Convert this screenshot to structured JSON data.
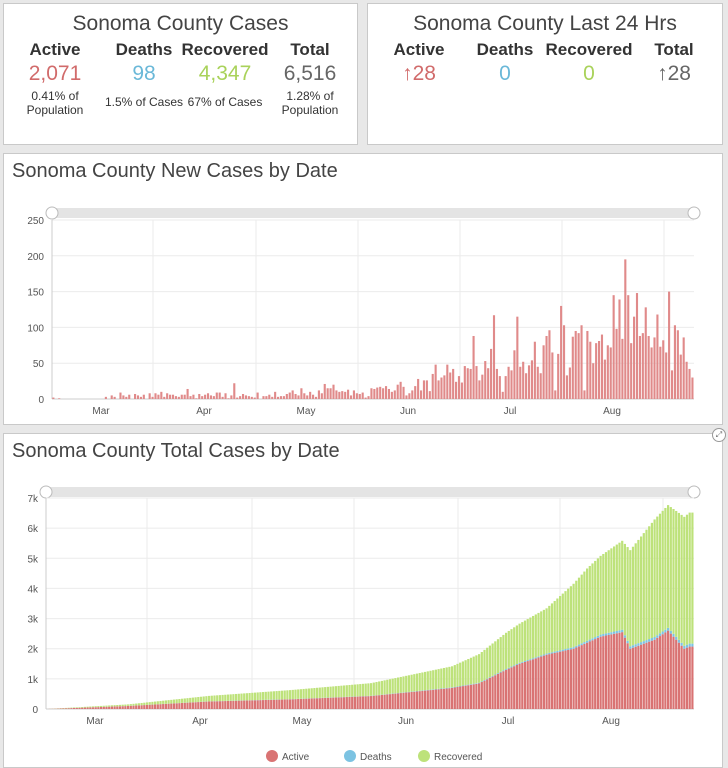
{
  "summary": {
    "title": "Sonoma County Cases",
    "stats": [
      {
        "label": "Active",
        "value": "2,071",
        "sub": "0.41% of Population",
        "color": "#d16b6b"
      },
      {
        "label": "Deaths",
        "value": "98",
        "sub": "1.5% of Cases",
        "color": "#6ab8d8"
      },
      {
        "label": "Recovered",
        "value": "4,347",
        "sub": "67% of Cases",
        "color": "#a9d25a"
      },
      {
        "label": "Total",
        "value": "6,516",
        "sub": "1.28% of Population",
        "color": "#666666"
      }
    ]
  },
  "last24": {
    "title": "Sonoma County Last 24 Hrs",
    "stats": [
      {
        "label": "Active",
        "value": "↑28",
        "color": "#d16b6b"
      },
      {
        "label": "Deaths",
        "value": "0",
        "color": "#6ab8d8"
      },
      {
        "label": "Recovered",
        "value": "0",
        "color": "#a9d25a"
      },
      {
        "label": "Total",
        "value": "↑28",
        "color": "#666666"
      }
    ]
  },
  "chart_data": [
    {
      "type": "bar",
      "title": "Sonoma County New Cases by Date",
      "ylim": [
        0,
        250
      ],
      "y_ticks": [
        "0",
        "50",
        "100",
        "150",
        "200",
        "250"
      ],
      "x_ticks": [
        "Mar",
        "Apr",
        "May",
        "Jun",
        "Jul",
        "Aug"
      ],
      "bar_color": "#e08a8a",
      "grid": true,
      "series": [
        {
          "values": [
            2,
            0,
            1,
            0,
            0,
            0,
            0,
            0,
            0,
            0,
            0,
            0,
            0,
            0,
            0,
            0,
            0,
            0,
            3,
            0,
            5,
            3,
            0,
            9,
            5,
            3,
            6,
            0,
            7,
            5,
            3,
            6,
            0,
            8,
            3,
            8,
            6,
            10,
            3,
            8,
            6,
            6,
            4,
            3,
            6,
            6,
            14,
            4,
            6,
            1,
            7,
            4,
            6,
            8,
            5,
            4,
            9,
            9,
            3,
            8,
            1,
            5,
            22,
            2,
            4,
            7,
            5,
            4,
            3,
            2,
            9,
            0,
            4,
            4,
            6,
            3,
            10,
            3,
            4,
            4,
            7,
            9,
            12,
            7,
            5,
            15,
            8,
            5,
            10,
            6,
            3,
            12,
            8,
            21,
            15,
            15,
            20,
            12,
            10,
            11,
            10,
            13,
            5,
            12,
            8,
            7,
            9,
            2,
            4,
            15,
            14,
            16,
            17,
            15,
            18,
            14,
            10,
            12,
            20,
            24,
            17,
            5,
            8,
            12,
            18,
            28,
            12,
            26,
            26,
            11,
            35,
            48,
            26,
            30,
            33,
            48,
            37,
            42,
            24,
            32,
            23,
            46,
            43,
            42,
            88,
            46,
            26,
            34,
            53,
            43,
            70,
            117,
            42,
            32,
            10,
            32,
            45,
            40,
            68,
            115,
            45,
            52,
            36,
            47,
            54,
            80,
            45,
            36,
            75,
            88,
            96,
            65,
            12,
            63,
            130,
            103,
            33,
            44,
            87,
            95,
            92,
            103,
            12,
            95,
            80,
            50,
            78,
            81,
            90,
            55,
            75,
            72,
            145,
            98,
            139,
            84,
            195,
            145,
            78,
            115,
            148,
            88,
            92,
            128,
            88,
            72,
            86,
            118,
            73,
            82,
            65,
            150,
            40,
            103,
            96,
            62,
            86,
            52,
            42,
            30
          ]
        }
      ]
    },
    {
      "type": "bar",
      "stacked": true,
      "title": "Sonoma County Total Cases by Date",
      "ylim": [
        0,
        7000
      ],
      "y_ticks": [
        "0",
        "1k",
        "2k",
        "3k",
        "4k",
        "5k",
        "6k",
        "7k"
      ],
      "x_ticks": [
        "Mar",
        "Apr",
        "May",
        "Jun",
        "Jul",
        "Aug"
      ],
      "grid": true,
      "legend_position": "bottom",
      "legend": [
        "Active",
        "Deaths",
        "Recovered"
      ],
      "series": [
        {
          "name": "Active",
          "color": "#d97373",
          "anchors_x": [
            0,
            30,
            60,
            90,
            120,
            150,
            160,
            170,
            175,
            185,
            195,
            205,
            213,
            216,
            225,
            230,
            236,
            238
          ],
          "anchors_y": [
            0,
            100,
            250,
            320,
            430,
            700,
            850,
            1300,
            1500,
            1800,
            2000,
            2400,
            2550,
            2000,
            2300,
            2600,
            2000,
            2071
          ]
        },
        {
          "name": "Deaths",
          "color": "#7cc3e2",
          "anchors_x": [
            0,
            30,
            60,
            120,
            160,
            185,
            213,
            238
          ],
          "anchors_y": [
            0,
            3,
            5,
            8,
            20,
            40,
            80,
            98
          ]
        },
        {
          "name": "Recovered",
          "color": "#bde27a",
          "anchors_x": [
            0,
            30,
            60,
            90,
            120,
            150,
            160,
            170,
            185,
            200,
            213,
            225,
            238
          ],
          "anchors_y": [
            0,
            50,
            180,
            300,
            420,
            700,
            950,
            1200,
            1500,
            2400,
            2950,
            3900,
            4347
          ]
        }
      ]
    }
  ]
}
